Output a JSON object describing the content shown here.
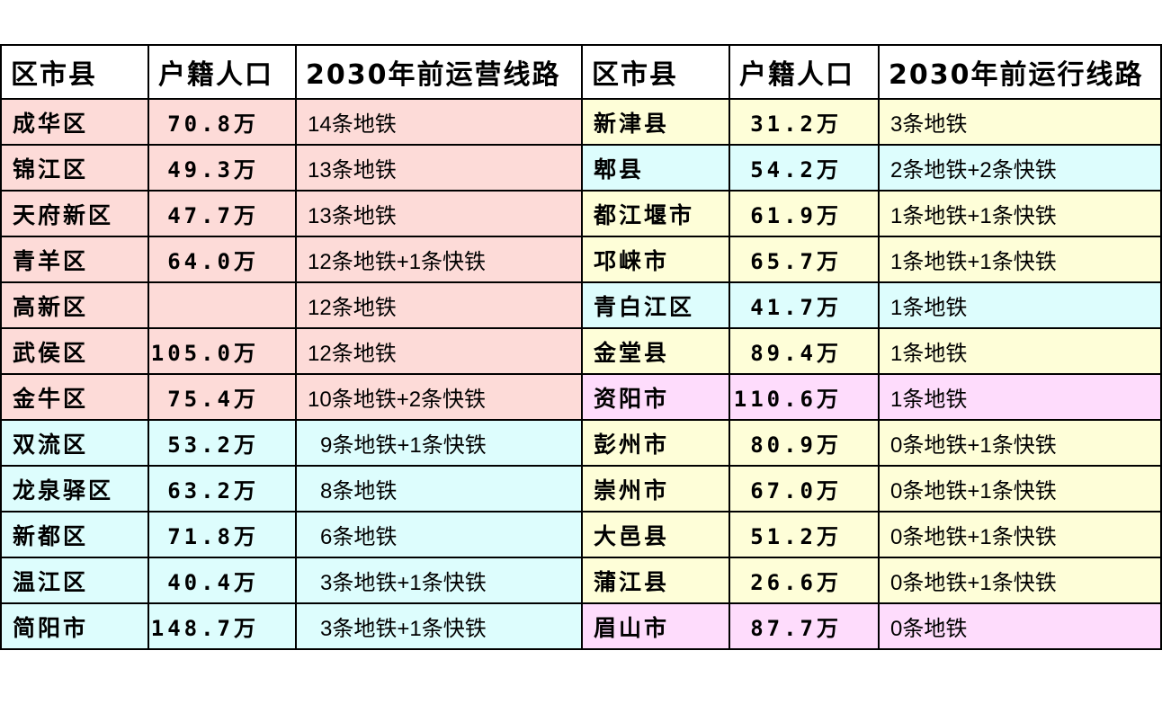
{
  "headers": {
    "left": [
      "区市县",
      "户籍人口",
      "2030年前运营线路"
    ],
    "right": [
      "区市县",
      "户籍人口",
      "2030年前运行线路"
    ]
  },
  "colors": {
    "pink": "#fddbd8",
    "cyan": "#ddfdfd",
    "yellow": "#fefed8",
    "purple": "#fedcfc"
  },
  "rows": [
    {
      "left": {
        "name": "成华区",
        "pop": "70.8万",
        "lines": "14条地铁",
        "color": "pink"
      },
      "right": {
        "name": "新津县",
        "pop": "31.2万",
        "lines": "3条地铁",
        "color": "yellow"
      }
    },
    {
      "left": {
        "name": "锦江区",
        "pop": "49.3万",
        "lines": "13条地铁",
        "color": "pink"
      },
      "right": {
        "name": "郫县",
        "pop": "54.2万",
        "lines": "2条地铁+2条快铁",
        "color": "cyan"
      }
    },
    {
      "left": {
        "name": "天府新区",
        "pop": "47.7万",
        "lines": "13条地铁",
        "color": "pink"
      },
      "right": {
        "name": "都江堰市",
        "pop": "61.9万",
        "lines": "1条地铁+1条快铁",
        "color": "yellow"
      }
    },
    {
      "left": {
        "name": "青羊区",
        "pop": "64.0万",
        "lines": "12条地铁+1条快铁",
        "color": "pink"
      },
      "right": {
        "name": "邛崃市",
        "pop": "65.7万",
        "lines": "1条地铁+1条快铁",
        "color": "yellow"
      }
    },
    {
      "left": {
        "name": "高新区",
        "pop": "",
        "lines": "12条地铁",
        "color": "pink"
      },
      "right": {
        "name": "青白江区",
        "pop": "41.7万",
        "lines": "1条地铁",
        "color": "cyan"
      }
    },
    {
      "left": {
        "name": "武侯区",
        "pop": "105.0万",
        "lines": "12条地铁",
        "color": "pink"
      },
      "right": {
        "name": "金堂县",
        "pop": "89.4万",
        "lines": "1条地铁",
        "color": "yellow"
      }
    },
    {
      "left": {
        "name": "金牛区",
        "pop": "75.4万",
        "lines": "10条地铁+2条快铁",
        "color": "pink"
      },
      "right": {
        "name": "资阳市",
        "pop": "110.6万",
        "lines": "1条地铁",
        "color": "purple"
      }
    },
    {
      "left": {
        "name": "双流区",
        "pop": "53.2万",
        "lines": "9条地铁+1条快铁",
        "color": "cyan"
      },
      "right": {
        "name": "彭州市",
        "pop": "80.9万",
        "lines": "0条地铁+1条快铁",
        "color": "yellow"
      }
    },
    {
      "left": {
        "name": "龙泉驿区",
        "pop": "63.2万",
        "lines": "8条地铁",
        "color": "cyan"
      },
      "right": {
        "name": "崇州市",
        "pop": "67.0万",
        "lines": "0条地铁+1条快铁",
        "color": "yellow"
      }
    },
    {
      "left": {
        "name": "新都区",
        "pop": "71.8万",
        "lines": "6条地铁",
        "color": "cyan"
      },
      "right": {
        "name": "大邑县",
        "pop": "51.2万",
        "lines": "0条地铁+1条快铁",
        "color": "yellow"
      }
    },
    {
      "left": {
        "name": "温江区",
        "pop": "40.4万",
        "lines": "3条地铁+1条快铁",
        "color": "cyan"
      },
      "right": {
        "name": "蒲江县",
        "pop": "26.6万",
        "lines": "0条地铁+1条快铁",
        "color": "yellow"
      }
    },
    {
      "left": {
        "name": "简阳市",
        "pop": "148.7万",
        "lines": "3条地铁+1条快铁",
        "color": "cyan"
      },
      "right": {
        "name": "眉山市",
        "pop": "87.7万",
        "lines": "0条地铁",
        "color": "purple"
      }
    }
  ]
}
